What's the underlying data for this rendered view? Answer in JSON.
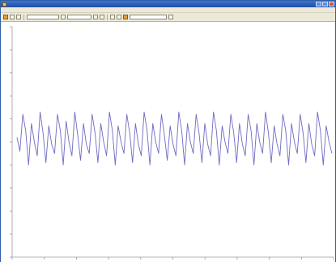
{
  "window": {
    "title": "",
    "app_icon": "app-icon",
    "controls": [
      "minimize-icon",
      "maximize-icon",
      "close-icon"
    ]
  },
  "menubar": {
    "items": [
      {
        "label": ""
      },
      {
        "label": ""
      },
      {
        "label": ""
      },
      {
        "label": ""
      },
      {
        "label": ""
      },
      {
        "label": ""
      }
    ]
  },
  "toolbar": {
    "field_1": "",
    "field_2": "",
    "field_3": ""
  },
  "chart_data": {
    "type": "line",
    "x_tick_count": 11,
    "y_tick_count": 11,
    "grid": false,
    "colors": {
      "line": "#6e6bc2",
      "axis": "#9a9a9a",
      "background": "#ffffff"
    },
    "series": [
      {
        "values": [
          0.52,
          0.46,
          0.62,
          0.55,
          0.4,
          0.58,
          0.5,
          0.44,
          0.63,
          0.54,
          0.41,
          0.57,
          0.49,
          0.45,
          0.62,
          0.55,
          0.4,
          0.59,
          0.5,
          0.44,
          0.63,
          0.53,
          0.42,
          0.58,
          0.49,
          0.45,
          0.62,
          0.54,
          0.41,
          0.58,
          0.5,
          0.44,
          0.63,
          0.55,
          0.4,
          0.57,
          0.5,
          0.45,
          0.62,
          0.54,
          0.41,
          0.58,
          0.49,
          0.44,
          0.63,
          0.55,
          0.4,
          0.58,
          0.5,
          0.45,
          0.62,
          0.53,
          0.42,
          0.57,
          0.49,
          0.44,
          0.63,
          0.55,
          0.4,
          0.58,
          0.5,
          0.45,
          0.62,
          0.54,
          0.41,
          0.58,
          0.49,
          0.44,
          0.63,
          0.55,
          0.4,
          0.57,
          0.5,
          0.45,
          0.62,
          0.54,
          0.41,
          0.58,
          0.49,
          0.44,
          0.62,
          0.55,
          0.4,
          0.58,
          0.5,
          0.45,
          0.63,
          0.54,
          0.41,
          0.57,
          0.49,
          0.44,
          0.62,
          0.55,
          0.4,
          0.58,
          0.5,
          0.45,
          0.62,
          0.54,
          0.41,
          0.58,
          0.49,
          0.44,
          0.63,
          0.55,
          0.4,
          0.57,
          0.5,
          0.45
        ]
      }
    ]
  }
}
